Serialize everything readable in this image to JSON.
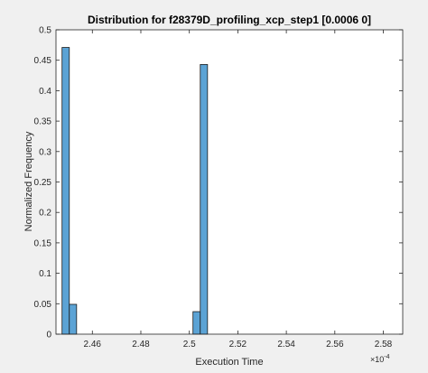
{
  "chart_data": {
    "type": "bar",
    "title": "Distribution for f28379D_profiling_xcp_step1 [0.0006 0]",
    "xlabel": "Execution Time",
    "ylabel": "Normalized Frequency",
    "x_exponent_label": "×10",
    "x_exponent_power": "-4",
    "xlim": [
      2.445,
      2.588
    ],
    "ylim": [
      0,
      0.5
    ],
    "xticks": [
      2.46,
      2.48,
      2.5,
      2.52,
      2.54,
      2.56,
      2.58
    ],
    "xtick_labels": [
      "2.46",
      "2.48",
      "2.5",
      "2.52",
      "2.54",
      "2.56",
      "2.58"
    ],
    "yticks": [
      0,
      0.05,
      0.1,
      0.15,
      0.2,
      0.25,
      0.3,
      0.35,
      0.4,
      0.45,
      0.5
    ],
    "ytick_labels": [
      "0",
      "0.05",
      "0.1",
      "0.15",
      "0.2",
      "0.25",
      "0.3",
      "0.35",
      "0.4",
      "0.45",
      "0.5"
    ],
    "bin_width": 0.003,
    "bins": [
      {
        "x_start": 2.4475,
        "height": 0.471
      },
      {
        "x_start": 2.4505,
        "height": 0.049
      },
      {
        "x_start": 2.5015,
        "height": 0.037
      },
      {
        "x_start": 2.5045,
        "height": 0.443
      }
    ],
    "bar_color": "#5ba3d5",
    "edge_color": "#1a1a1a",
    "grid": false,
    "legend": "none"
  }
}
